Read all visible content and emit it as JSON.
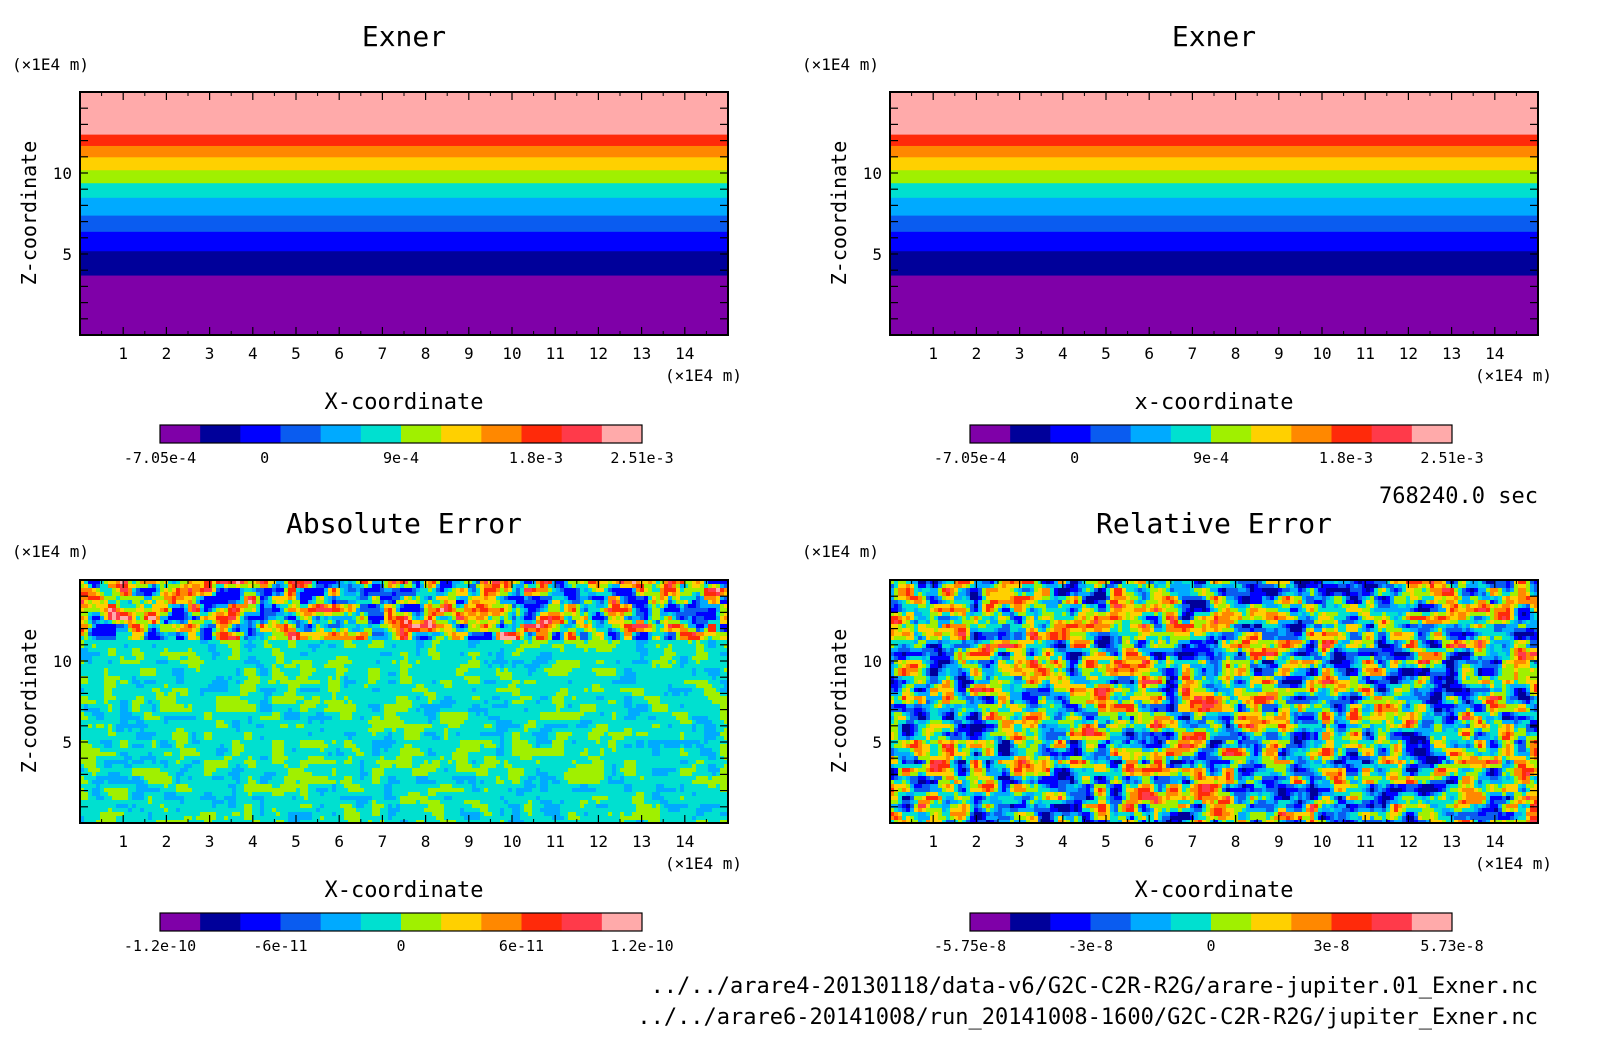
{
  "chart_data": [
    {
      "type": "contour",
      "pattern": "layers",
      "title": "Exner",
      "xlabel": "X-coordinate",
      "ylabel": "Z-coordinate",
      "x_unit": "(×1E4 m)",
      "y_unit": "(×1E4 m)",
      "xlim": [
        0,
        15
      ],
      "ylim": [
        0,
        15
      ],
      "x_ticks": [
        "1",
        "2",
        "3",
        "4",
        "5",
        "6",
        "7",
        "8",
        "9",
        "10",
        "11",
        "12",
        "13",
        "14"
      ],
      "y_ticks": [
        "5",
        "10"
      ],
      "colorbar": {
        "colors": [
          "#7f00a8",
          "#00009a",
          "#0000ff",
          "#0a5cf0",
          "#00aaff",
          "#00e0d0",
          "#a0f000",
          "#ffd000",
          "#ff8800",
          "#ff2a0a",
          "#ff3a4a",
          "#ffaaaa"
        ],
        "tick_labels": [
          "-7.05e-4",
          "0",
          "9e-4",
          "1.8e-3",
          "2.51e-3"
        ]
      },
      "layers_z": [
        {
          "z_from": 0,
          "z_to": 3.7,
          "color": "#7f00a8"
        },
        {
          "z_from": 3.7,
          "z_to": 5.2,
          "color": "#00009a"
        },
        {
          "z_from": 5.2,
          "z_to": 6.4,
          "color": "#0000ff"
        },
        {
          "z_from": 6.4,
          "z_to": 7.4,
          "color": "#0a5cf0"
        },
        {
          "z_from": 7.4,
          "z_to": 8.5,
          "color": "#00aaff"
        },
        {
          "z_from": 8.5,
          "z_to": 9.4,
          "color": "#00e0d0"
        },
        {
          "z_from": 9.4,
          "z_to": 10.2,
          "color": "#a0f000"
        },
        {
          "z_from": 10.2,
          "z_to": 11.0,
          "color": "#ffd000"
        },
        {
          "z_from": 11.0,
          "z_to": 11.7,
          "color": "#ff8800"
        },
        {
          "z_from": 11.7,
          "z_to": 12.4,
          "color": "#ff2a0a"
        },
        {
          "z_from": 12.4,
          "z_to": 15,
          "color": "#ffaaaa"
        }
      ]
    },
    {
      "type": "contour",
      "pattern": "layers",
      "title": "Exner",
      "xlabel": "x-coordinate",
      "ylabel": "Z-coordinate",
      "x_unit": "(×1E4 m)",
      "y_unit": "(×1E4 m)",
      "xlim": [
        0,
        15
      ],
      "ylim": [
        0,
        15
      ],
      "x_ticks": [
        "1",
        "2",
        "3",
        "4",
        "5",
        "6",
        "7",
        "8",
        "9",
        "10",
        "11",
        "12",
        "13",
        "14"
      ],
      "y_ticks": [
        "5",
        "10"
      ],
      "colorbar": {
        "colors": [
          "#7f00a8",
          "#00009a",
          "#0000ff",
          "#0a5cf0",
          "#00aaff",
          "#00e0d0",
          "#a0f000",
          "#ffd000",
          "#ff8800",
          "#ff2a0a",
          "#ff3a4a",
          "#ffaaaa"
        ],
        "tick_labels": [
          "-7.05e-4",
          "0",
          "9e-4",
          "1.8e-3",
          "2.51e-3"
        ]
      },
      "layers_z": [
        {
          "z_from": 0,
          "z_to": 3.7,
          "color": "#7f00a8"
        },
        {
          "z_from": 3.7,
          "z_to": 5.2,
          "color": "#00009a"
        },
        {
          "z_from": 5.2,
          "z_to": 6.4,
          "color": "#0000ff"
        },
        {
          "z_from": 6.4,
          "z_to": 7.4,
          "color": "#0a5cf0"
        },
        {
          "z_from": 7.4,
          "z_to": 8.5,
          "color": "#00aaff"
        },
        {
          "z_from": 8.5,
          "z_to": 9.4,
          "color": "#00e0d0"
        },
        {
          "z_from": 9.4,
          "z_to": 10.2,
          "color": "#a0f000"
        },
        {
          "z_from": 10.2,
          "z_to": 11.0,
          "color": "#ffd000"
        },
        {
          "z_from": 11.0,
          "z_to": 11.7,
          "color": "#ff8800"
        },
        {
          "z_from": 11.7,
          "z_to": 12.4,
          "color": "#ff2a0a"
        },
        {
          "z_from": 12.4,
          "z_to": 15,
          "color": "#ffaaaa"
        }
      ]
    },
    {
      "type": "contour",
      "pattern": "noise-abs",
      "title": "Absolute Error",
      "xlabel": "X-coordinate",
      "ylabel": "Z-coordinate",
      "x_unit": "(×1E4 m)",
      "y_unit": "(×1E4 m)",
      "xlim": [
        0,
        15
      ],
      "ylim": [
        0,
        15
      ],
      "x_ticks": [
        "1",
        "2",
        "3",
        "4",
        "5",
        "6",
        "7",
        "8",
        "9",
        "10",
        "11",
        "12",
        "13",
        "14"
      ],
      "y_ticks": [
        "5",
        "10"
      ],
      "colorbar": {
        "colors": [
          "#7f00a8",
          "#00009a",
          "#0000ff",
          "#0a5cf0",
          "#00aaff",
          "#00e0d0",
          "#a0f000",
          "#ffd000",
          "#ff8800",
          "#ff2a0a",
          "#ff3a4a",
          "#ffaaaa"
        ],
        "tick_labels": [
          "-1.2e-10",
          "-6e-11",
          "0",
          "6e-11",
          "1.2e-10"
        ]
      }
    },
    {
      "type": "contour",
      "pattern": "noise-rel",
      "title": "Relative Error",
      "xlabel": "X-coordinate",
      "ylabel": "Z-coordinate",
      "x_unit": "(×1E4 m)",
      "y_unit": "(×1E4 m)",
      "xlim": [
        0,
        15
      ],
      "ylim": [
        0,
        15
      ],
      "x_ticks": [
        "1",
        "2",
        "3",
        "4",
        "5",
        "6",
        "7",
        "8",
        "9",
        "10",
        "11",
        "12",
        "13",
        "14"
      ],
      "y_ticks": [
        "5",
        "10"
      ],
      "colorbar": {
        "colors": [
          "#7f00a8",
          "#00009a",
          "#0000ff",
          "#0a5cf0",
          "#00aaff",
          "#00e0d0",
          "#a0f000",
          "#ffd000",
          "#ff8800",
          "#ff2a0a",
          "#ff3a4a",
          "#ffaaaa"
        ],
        "tick_labels": [
          "-5.75e-8",
          "-3e-8",
          "0",
          "3e-8",
          "5.73e-8"
        ]
      }
    }
  ],
  "figure": {
    "time_label": "768240.0 sec",
    "file_paths": [
      "../../arare4-20130118/data-v6/G2C-C2R-R2G/arare-jupiter.01_Exner.nc",
      "../../arare6-20141008/run_20141008-1600/G2C-C2R-R2G/jupiter_Exner.nc"
    ]
  }
}
